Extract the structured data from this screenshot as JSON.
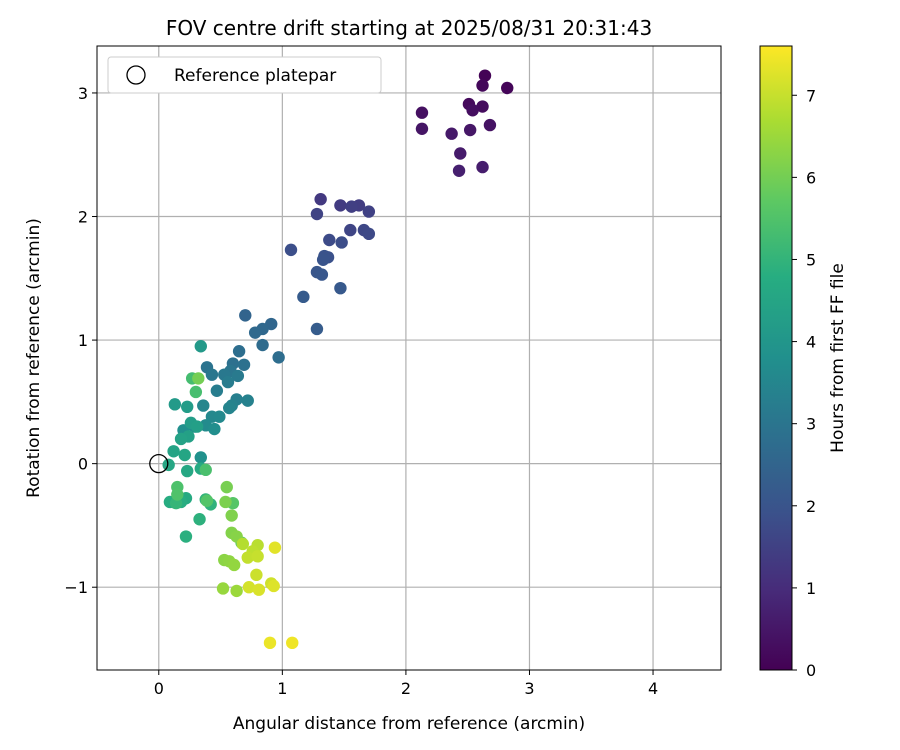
{
  "chart_data": {
    "type": "scatter",
    "title": "FOV centre drift starting at 2025/08/31 20:31:43",
    "xlabel": "Angular distance from reference (arcmin)",
    "ylabel": "Rotation from reference (arcmin)",
    "xlim": [
      -0.5,
      4.55
    ],
    "ylim": [
      -1.67,
      3.38
    ],
    "xticks": [
      0,
      1,
      2,
      3,
      4
    ],
    "xtick_labels": [
      "0",
      "1",
      "2",
      "3",
      "4"
    ],
    "yticks": [
      -1,
      0,
      1,
      2,
      3
    ],
    "ytick_labels": [
      "−1",
      "0",
      "1",
      "2",
      "3"
    ],
    "grid": true,
    "legend": {
      "location": "top-left",
      "label": "Reference platepar"
    },
    "reference_point": {
      "x": 0,
      "y": 0
    },
    "colorbar": {
      "label": "Hours from first FF file",
      "colormap": "viridis",
      "range": [
        0,
        7.6
      ],
      "ticks": [
        0,
        1,
        2,
        3,
        4,
        5,
        6,
        7
      ],
      "tick_labels": [
        "0",
        "1",
        "2",
        "3",
        "4",
        "5",
        "6",
        "7"
      ]
    },
    "points": [
      {
        "x": 2.64,
        "y": 3.14,
        "hours": 0.05
      },
      {
        "x": 2.82,
        "y": 3.04,
        "hours": 0.1
      },
      {
        "x": 2.62,
        "y": 3.06,
        "hours": 0.15
      },
      {
        "x": 2.51,
        "y": 2.91,
        "hours": 0.2
      },
      {
        "x": 2.62,
        "y": 2.89,
        "hours": 0.25
      },
      {
        "x": 2.54,
        "y": 2.86,
        "hours": 0.3
      },
      {
        "x": 2.13,
        "y": 2.84,
        "hours": 0.35
      },
      {
        "x": 2.68,
        "y": 2.74,
        "hours": 0.4
      },
      {
        "x": 2.13,
        "y": 2.71,
        "hours": 0.45
      },
      {
        "x": 2.52,
        "y": 2.7,
        "hours": 0.5
      },
      {
        "x": 2.37,
        "y": 2.67,
        "hours": 0.55
      },
      {
        "x": 2.44,
        "y": 2.51,
        "hours": 0.6
      },
      {
        "x": 2.62,
        "y": 2.4,
        "hours": 0.65
      },
      {
        "x": 2.43,
        "y": 2.37,
        "hours": 0.7
      },
      {
        "x": 1.31,
        "y": 2.14,
        "hours": 1.3
      },
      {
        "x": 1.47,
        "y": 2.09,
        "hours": 1.35
      },
      {
        "x": 1.62,
        "y": 2.09,
        "hours": 1.4
      },
      {
        "x": 1.56,
        "y": 2.08,
        "hours": 1.45
      },
      {
        "x": 1.7,
        "y": 2.04,
        "hours": 1.5
      },
      {
        "x": 1.28,
        "y": 2.02,
        "hours": 1.55
      },
      {
        "x": 1.55,
        "y": 1.89,
        "hours": 1.6
      },
      {
        "x": 1.66,
        "y": 1.89,
        "hours": 1.65
      },
      {
        "x": 1.7,
        "y": 1.86,
        "hours": 1.7
      },
      {
        "x": 1.38,
        "y": 1.81,
        "hours": 1.75
      },
      {
        "x": 1.48,
        "y": 1.79,
        "hours": 1.8
      },
      {
        "x": 1.07,
        "y": 1.73,
        "hours": 1.85
      },
      {
        "x": 1.37,
        "y": 1.67,
        "hours": 1.9
      },
      {
        "x": 1.34,
        "y": 1.68,
        "hours": 1.95
      },
      {
        "x": 1.33,
        "y": 1.65,
        "hours": 2.0
      },
      {
        "x": 1.28,
        "y": 1.55,
        "hours": 2.05
      },
      {
        "x": 1.32,
        "y": 1.53,
        "hours": 2.1
      },
      {
        "x": 1.47,
        "y": 1.42,
        "hours": 2.15
      },
      {
        "x": 1.17,
        "y": 1.35,
        "hours": 2.2
      },
      {
        "x": 1.28,
        "y": 1.09,
        "hours": 2.25
      },
      {
        "x": 0.7,
        "y": 1.2,
        "hours": 2.5
      },
      {
        "x": 0.91,
        "y": 1.13,
        "hours": 2.55
      },
      {
        "x": 0.84,
        "y": 1.09,
        "hours": 2.6
      },
      {
        "x": 0.78,
        "y": 1.06,
        "hours": 2.65
      },
      {
        "x": 0.84,
        "y": 0.96,
        "hours": 2.7
      },
      {
        "x": 0.97,
        "y": 0.86,
        "hours": 2.75
      },
      {
        "x": 0.65,
        "y": 0.91,
        "hours": 2.8
      },
      {
        "x": 0.6,
        "y": 0.81,
        "hours": 2.85
      },
      {
        "x": 0.69,
        "y": 0.8,
        "hours": 2.9
      },
      {
        "x": 0.39,
        "y": 0.78,
        "hours": 2.95
      },
      {
        "x": 0.58,
        "y": 0.75,
        "hours": 3.0
      },
      {
        "x": 0.43,
        "y": 0.72,
        "hours": 3.05
      },
      {
        "x": 0.53,
        "y": 0.72,
        "hours": 3.1
      },
      {
        "x": 0.64,
        "y": 0.71,
        "hours": 3.15
      },
      {
        "x": 0.56,
        "y": 0.66,
        "hours": 3.2
      },
      {
        "x": 0.47,
        "y": 0.59,
        "hours": 3.25
      },
      {
        "x": 0.63,
        "y": 0.52,
        "hours": 3.3
      },
      {
        "x": 0.72,
        "y": 0.51,
        "hours": 3.35
      },
      {
        "x": 0.59,
        "y": 0.47,
        "hours": 3.4
      },
      {
        "x": 0.57,
        "y": 0.45,
        "hours": 3.45
      },
      {
        "x": 0.36,
        "y": 0.47,
        "hours": 3.5
      },
      {
        "x": 0.43,
        "y": 0.38,
        "hours": 3.55
      },
      {
        "x": 0.49,
        "y": 0.38,
        "hours": 3.6
      },
      {
        "x": 0.38,
        "y": 0.31,
        "hours": 3.65
      },
      {
        "x": 0.29,
        "y": 0.3,
        "hours": 3.7
      },
      {
        "x": 0.45,
        "y": 0.28,
        "hours": 3.75
      },
      {
        "x": 0.2,
        "y": 0.27,
        "hours": 3.8
      },
      {
        "x": 0.34,
        "y": 0.05,
        "hours": 3.85
      },
      {
        "x": 0.34,
        "y": 0.95,
        "hours": 4.1
      },
      {
        "x": 0.13,
        "y": 0.48,
        "hours": 4.15
      },
      {
        "x": 0.23,
        "y": 0.46,
        "hours": 4.2
      },
      {
        "x": 0.26,
        "y": 0.33,
        "hours": 4.25
      },
      {
        "x": 0.31,
        "y": 0.3,
        "hours": 4.3
      },
      {
        "x": 0.24,
        "y": 0.22,
        "hours": 4.35
      },
      {
        "x": 0.18,
        "y": 0.2,
        "hours": 4.4
      },
      {
        "x": 0.12,
        "y": 0.1,
        "hours": 4.45
      },
      {
        "x": 0.21,
        "y": 0.07,
        "hours": 4.5
      },
      {
        "x": 0.08,
        "y": -0.01,
        "hours": 4.55
      },
      {
        "x": 0.23,
        "y": -0.06,
        "hours": 4.6
      },
      {
        "x": 0.34,
        "y": -0.04,
        "hours": 4.65
      },
      {
        "x": 0.22,
        "y": -0.28,
        "hours": 4.7
      },
      {
        "x": 0.09,
        "y": -0.31,
        "hours": 4.75
      },
      {
        "x": 0.18,
        "y": -0.31,
        "hours": 4.8
      },
      {
        "x": 0.22,
        "y": -0.59,
        "hours": 4.85
      },
      {
        "x": 0.33,
        "y": -0.45,
        "hours": 4.9
      },
      {
        "x": 0.42,
        "y": -0.33,
        "hours": 4.95
      },
      {
        "x": 0.38,
        "y": -0.29,
        "hours": 5.0
      },
      {
        "x": 0.14,
        "y": -0.32,
        "hours": 5.05
      },
      {
        "x": 0.27,
        "y": 0.69,
        "hours": 5.3
      },
      {
        "x": 0.3,
        "y": 0.58,
        "hours": 5.35
      },
      {
        "x": 0.38,
        "y": -0.05,
        "hours": 5.4
      },
      {
        "x": 0.15,
        "y": -0.19,
        "hours": 5.45
      },
      {
        "x": 0.15,
        "y": -0.25,
        "hours": 5.5
      },
      {
        "x": 0.39,
        "y": -0.3,
        "hours": 5.55
      },
      {
        "x": 0.6,
        "y": -0.32,
        "hours": 5.6
      },
      {
        "x": 0.67,
        "y": -0.64,
        "hours": 5.65
      },
      {
        "x": 0.32,
        "y": 0.69,
        "hours": 6.0
      },
      {
        "x": 0.55,
        "y": -0.19,
        "hours": 6.05
      },
      {
        "x": 0.54,
        "y": -0.31,
        "hours": 6.1
      },
      {
        "x": 0.59,
        "y": -0.42,
        "hours": 6.15
      },
      {
        "x": 0.59,
        "y": -0.56,
        "hours": 6.2
      },
      {
        "x": 0.63,
        "y": -0.59,
        "hours": 6.25
      },
      {
        "x": 0.53,
        "y": -0.78,
        "hours": 6.3
      },
      {
        "x": 0.57,
        "y": -0.79,
        "hours": 6.35
      },
      {
        "x": 0.61,
        "y": -0.82,
        "hours": 6.4
      },
      {
        "x": 0.52,
        "y": -1.01,
        "hours": 6.45
      },
      {
        "x": 0.63,
        "y": -1.03,
        "hours": 6.5
      },
      {
        "x": 0.68,
        "y": -0.65,
        "hours": 6.8
      },
      {
        "x": 0.8,
        "y": -0.66,
        "hours": 6.85
      },
      {
        "x": 0.76,
        "y": -0.71,
        "hours": 6.9
      },
      {
        "x": 0.72,
        "y": -0.76,
        "hours": 6.95
      },
      {
        "x": 0.8,
        "y": -0.75,
        "hours": 7.0
      },
      {
        "x": 0.79,
        "y": -0.9,
        "hours": 7.05
      },
      {
        "x": 0.91,
        "y": -0.97,
        "hours": 7.1
      },
      {
        "x": 0.73,
        "y": -1.0,
        "hours": 7.15
      },
      {
        "x": 0.81,
        "y": -1.02,
        "hours": 7.2
      },
      {
        "x": 0.93,
        "y": -0.99,
        "hours": 7.25
      },
      {
        "x": 0.94,
        "y": -0.68,
        "hours": 7.3
      },
      {
        "x": 0.9,
        "y": -1.45,
        "hours": 7.4
      },
      {
        "x": 1.08,
        "y": -1.45,
        "hours": 7.45
      }
    ]
  }
}
